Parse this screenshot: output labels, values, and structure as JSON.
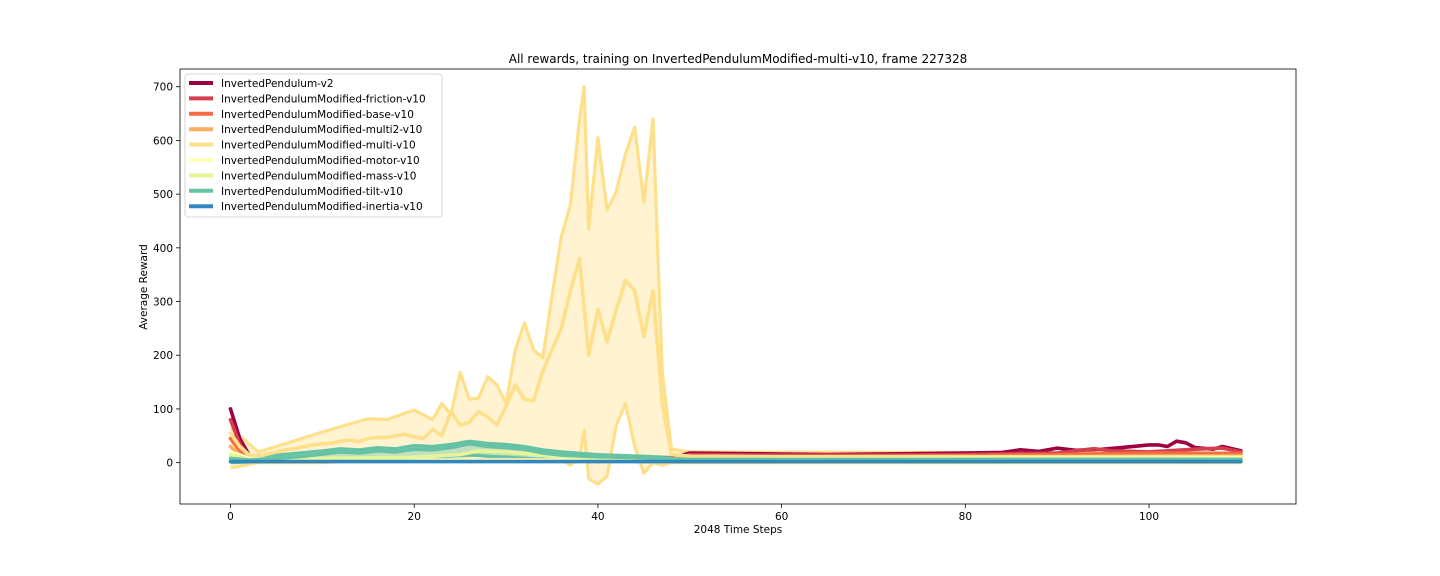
{
  "chart_data": {
    "type": "line",
    "title": "All rewards, training on InvertedPendulumModified-multi-v10, frame 227328",
    "xlabel": "2048 Time Steps",
    "ylabel": "Average Reward",
    "xlim": [
      -5.5,
      116
    ],
    "ylim": [
      -77,
      733
    ],
    "xticks": [
      0,
      20,
      40,
      60,
      80,
      100
    ],
    "yticks": [
      0,
      100,
      200,
      300,
      400,
      500,
      600,
      700
    ],
    "grid": false,
    "legend_position": "top-left",
    "series": [
      {
        "name": "InvertedPendulum-v2",
        "color": "#9e0142",
        "points": [
          [
            0,
            100
          ],
          [
            1,
            45
          ],
          [
            2,
            15
          ],
          [
            3,
            5
          ],
          [
            10,
            4
          ],
          [
            30,
            4
          ],
          [
            40,
            4
          ],
          [
            48,
            8
          ],
          [
            50,
            18
          ],
          [
            55,
            17
          ],
          [
            60,
            16
          ],
          [
            65,
            15
          ],
          [
            70,
            16
          ],
          [
            75,
            17
          ],
          [
            80,
            18
          ],
          [
            84,
            19
          ],
          [
            86,
            24
          ],
          [
            88,
            21
          ],
          [
            90,
            27
          ],
          [
            92,
            23
          ],
          [
            95,
            25
          ],
          [
            97,
            28
          ],
          [
            100,
            33
          ],
          [
            101,
            33
          ],
          [
            102,
            30
          ],
          [
            103,
            40
          ],
          [
            104,
            37
          ],
          [
            105,
            28
          ],
          [
            107,
            25
          ],
          [
            108,
            30
          ],
          [
            110,
            22
          ]
        ],
        "band": null
      },
      {
        "name": "InvertedPendulumModified-friction-v10",
        "color": "#d53e4f",
        "points": [
          [
            0,
            80
          ],
          [
            1,
            35
          ],
          [
            2,
            12
          ],
          [
            3,
            5
          ],
          [
            10,
            4
          ],
          [
            30,
            4
          ],
          [
            48,
            6
          ],
          [
            50,
            15
          ],
          [
            60,
            14
          ],
          [
            70,
            14
          ],
          [
            80,
            15
          ],
          [
            90,
            18
          ],
          [
            94,
            26
          ],
          [
            96,
            22
          ],
          [
            100,
            20
          ],
          [
            105,
            25
          ],
          [
            108,
            27
          ],
          [
            110,
            20
          ]
        ],
        "band": null
      },
      {
        "name": "InvertedPendulumModified-base-v10",
        "color": "#f46d43",
        "points": [
          [
            0,
            45
          ],
          [
            1,
            22
          ],
          [
            2,
            10
          ],
          [
            3,
            5
          ],
          [
            20,
            5
          ],
          [
            40,
            5
          ],
          [
            48,
            5
          ],
          [
            50,
            10
          ],
          [
            60,
            11
          ],
          [
            70,
            12
          ],
          [
            80,
            13
          ],
          [
            90,
            15
          ],
          [
            100,
            18
          ],
          [
            110,
            17
          ]
        ],
        "band": null
      },
      {
        "name": "InvertedPendulumModified-multi2-v10",
        "color": "#fdae61",
        "points": [
          [
            0,
            30
          ],
          [
            1,
            15
          ],
          [
            3,
            6
          ],
          [
            20,
            5
          ],
          [
            40,
            5
          ],
          [
            50,
            8
          ],
          [
            60,
            9
          ],
          [
            80,
            10
          ],
          [
            100,
            12
          ],
          [
            110,
            12
          ]
        ],
        "band": null
      },
      {
        "name": "InvertedPendulumModified-multi-v10",
        "color": "#fee08b",
        "points": [
          [
            0,
            55
          ],
          [
            1,
            30
          ],
          [
            2,
            15
          ],
          [
            3,
            12
          ],
          [
            4,
            16
          ],
          [
            5,
            20
          ],
          [
            6,
            24
          ],
          [
            7,
            26
          ],
          [
            8,
            30
          ],
          [
            9,
            33
          ],
          [
            10,
            35
          ],
          [
            11,
            36
          ],
          [
            12,
            40
          ],
          [
            13,
            42
          ],
          [
            14,
            39
          ],
          [
            15,
            45
          ],
          [
            16,
            47
          ],
          [
            17,
            47
          ],
          [
            18,
            50
          ],
          [
            19,
            53
          ],
          [
            20,
            48
          ],
          [
            21,
            45
          ],
          [
            22,
            62
          ],
          [
            23,
            50
          ],
          [
            24,
            95
          ],
          [
            25,
            70
          ],
          [
            26,
            75
          ],
          [
            27,
            95
          ],
          [
            28,
            85
          ],
          [
            29,
            70
          ],
          [
            30,
            105
          ],
          [
            31,
            145
          ],
          [
            32,
            118
          ],
          [
            33,
            115
          ],
          [
            34,
            170
          ],
          [
            35,
            210
          ],
          [
            36,
            250
          ],
          [
            37,
            320
          ],
          [
            38,
            380
          ],
          [
            39,
            200
          ],
          [
            40,
            285
          ],
          [
            41,
            225
          ],
          [
            42,
            285
          ],
          [
            43,
            340
          ],
          [
            44,
            320
          ],
          [
            45,
            235
          ],
          [
            46,
            320
          ],
          [
            47,
            110
          ],
          [
            48,
            15
          ],
          [
            50,
            12
          ],
          [
            60,
            11
          ],
          [
            80,
            11
          ],
          [
            100,
            11
          ],
          [
            110,
            11
          ]
        ],
        "band": [
          [
            0,
            -10,
            65
          ],
          [
            3,
            0,
            20
          ],
          [
            5,
            0,
            30
          ],
          [
            10,
            0,
            57
          ],
          [
            15,
            5,
            82
          ],
          [
            17,
            5,
            80
          ],
          [
            20,
            5,
            98
          ],
          [
            22,
            5,
            80
          ],
          [
            23,
            10,
            110
          ],
          [
            24,
            15,
            90
          ],
          [
            25,
            12,
            168
          ],
          [
            26,
            12,
            118
          ],
          [
            27,
            15,
            120
          ],
          [
            28,
            10,
            160
          ],
          [
            29,
            10,
            145
          ],
          [
            30,
            12,
            110
          ],
          [
            31,
            10,
            210
          ],
          [
            32,
            10,
            260
          ],
          [
            33,
            20,
            210
          ],
          [
            34,
            10,
            195
          ],
          [
            35,
            10,
            310
          ],
          [
            36,
            5,
            420
          ],
          [
            37,
            -5,
            480
          ],
          [
            38,
            10,
            640
          ],
          [
            38.5,
            60,
            700
          ],
          [
            39,
            -30,
            435
          ],
          [
            40,
            -40,
            605
          ],
          [
            41,
            -25,
            470
          ],
          [
            42,
            70,
            505
          ],
          [
            43,
            110,
            575
          ],
          [
            44,
            30,
            625
          ],
          [
            45,
            -20,
            485
          ],
          [
            46,
            0,
            640
          ],
          [
            47,
            -5,
            170
          ],
          [
            48,
            0,
            25
          ],
          [
            50,
            0,
            20
          ],
          [
            110,
            0,
            18
          ]
        ]
      },
      {
        "name": "InvertedPendulumModified-motor-v10",
        "color": "#ffffbf",
        "points": [
          [
            0,
            20
          ],
          [
            2,
            8
          ],
          [
            5,
            5
          ],
          [
            20,
            5
          ],
          [
            40,
            5
          ],
          [
            50,
            6
          ],
          [
            80,
            8
          ],
          [
            110,
            9
          ]
        ],
        "band": null
      },
      {
        "name": "InvertedPendulumModified-mass-v10",
        "color": "#e6f598",
        "points": [
          [
            0,
            15
          ],
          [
            2,
            6
          ],
          [
            5,
            6
          ],
          [
            10,
            8
          ],
          [
            20,
            10
          ],
          [
            25,
            15
          ],
          [
            27,
            22
          ],
          [
            30,
            20
          ],
          [
            35,
            12
          ],
          [
            40,
            8
          ],
          [
            50,
            6
          ],
          [
            80,
            7
          ],
          [
            110,
            8
          ]
        ],
        "band": null
      },
      {
        "name": "InvertedPendulumModified-tilt-v10",
        "color": "#66c2a5",
        "points": [
          [
            0,
            8
          ],
          [
            2,
            5
          ],
          [
            5,
            8
          ],
          [
            8,
            12
          ],
          [
            10,
            16
          ],
          [
            12,
            20
          ],
          [
            14,
            18
          ],
          [
            16,
            22
          ],
          [
            18,
            20
          ],
          [
            20,
            25
          ],
          [
            22,
            24
          ],
          [
            24,
            28
          ],
          [
            26,
            35
          ],
          [
            28,
            30
          ],
          [
            30,
            28
          ],
          [
            32,
            25
          ],
          [
            34,
            18
          ],
          [
            36,
            14
          ],
          [
            40,
            11
          ],
          [
            45,
            9
          ],
          [
            50,
            6
          ],
          [
            110,
            6
          ]
        ],
        "band": [
          [
            0,
            0,
            12
          ],
          [
            5,
            3,
            14
          ],
          [
            10,
            4,
            22
          ],
          [
            12,
            6,
            26
          ],
          [
            14,
            8,
            24
          ],
          [
            16,
            8,
            28
          ],
          [
            18,
            8,
            26
          ],
          [
            20,
            10,
            32
          ],
          [
            22,
            10,
            30
          ],
          [
            24,
            12,
            34
          ],
          [
            26,
            14,
            40
          ],
          [
            28,
            12,
            36
          ],
          [
            30,
            10,
            34
          ],
          [
            32,
            8,
            30
          ],
          [
            34,
            6,
            24
          ],
          [
            36,
            4,
            20
          ],
          [
            40,
            3,
            15
          ],
          [
            45,
            2,
            12
          ],
          [
            50,
            2,
            8
          ],
          [
            110,
            2,
            8
          ]
        ]
      },
      {
        "name": "InvertedPendulumModified-inertia-v10",
        "color": "#3288bd",
        "points": [
          [
            0,
            2
          ],
          [
            20,
            2
          ],
          [
            40,
            2
          ],
          [
            60,
            2
          ],
          [
            80,
            2
          ],
          [
            100,
            2
          ],
          [
            110,
            2
          ]
        ],
        "band": null
      }
    ]
  }
}
